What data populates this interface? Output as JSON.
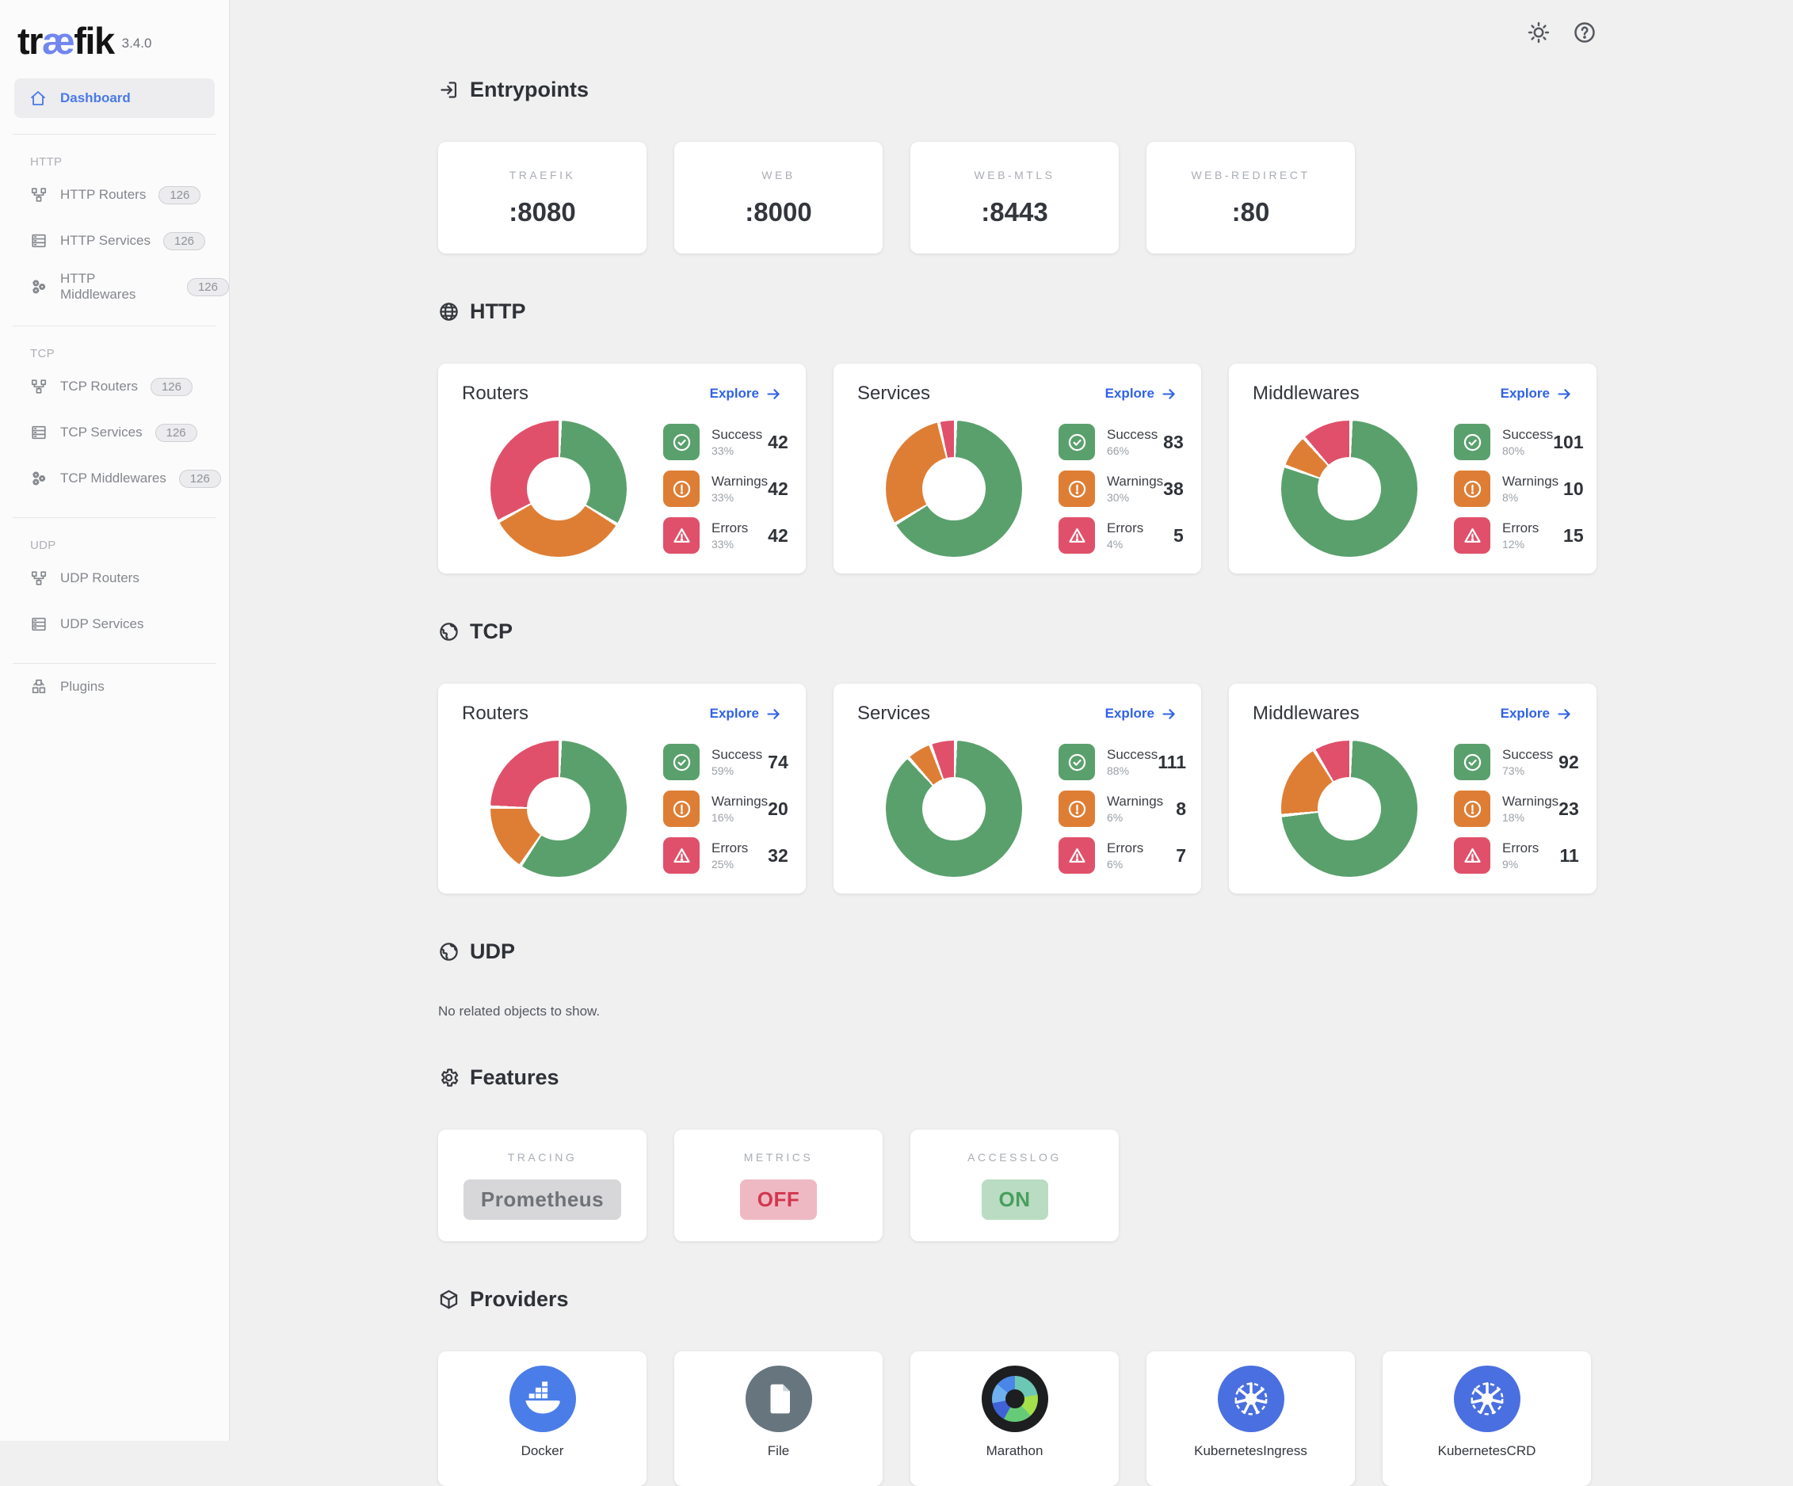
{
  "colors": {
    "accent": "#2f62e6",
    "logo_accent": "#7286f0",
    "success": "#5aa06d",
    "warning": "#de7e35",
    "error": "#e0506a",
    "feature_on_bg": "#badcc2",
    "feature_on_text": "#4a9e5e",
    "feature_off_bg": "#efb9c3",
    "feature_off_text": "#d2374e",
    "feature_neutral_bg": "#d7d7d9",
    "feature_neutral_text": "#6f7277",
    "docker_blue": "#4a7de8",
    "kubernetes_blue": "#4a6fe0",
    "file_gray": "#67757e"
  },
  "app": {
    "logo_pre": "tr",
    "logo_mid": "æ",
    "logo_post": "fik",
    "version": "3.4.0"
  },
  "topbar": {
    "theme_icon": "sun-icon",
    "help_icon": "help-icon"
  },
  "sidebar": {
    "dashboard_label": "Dashboard",
    "sections": [
      {
        "title": "HTTP",
        "items": [
          {
            "label": "HTTP Routers",
            "badge": "126",
            "icon": "routers-icon"
          },
          {
            "label": "HTTP Services",
            "badge": "126",
            "icon": "services-icon"
          },
          {
            "label": "HTTP Middlewares",
            "badge": "126",
            "icon": "middlewares-icon"
          }
        ]
      },
      {
        "title": "TCP",
        "items": [
          {
            "label": "TCP Routers",
            "badge": "126",
            "icon": "routers-icon"
          },
          {
            "label": "TCP Services",
            "badge": "126",
            "icon": "services-icon"
          },
          {
            "label": "TCP Middlewares",
            "badge": "126",
            "icon": "middlewares-icon"
          }
        ]
      },
      {
        "title": "UDP",
        "items": [
          {
            "label": "UDP Routers",
            "badge": null,
            "icon": "routers-icon"
          },
          {
            "label": "UDP Services",
            "badge": null,
            "icon": "services-icon"
          }
        ]
      }
    ],
    "plugins_label": "Plugins"
  },
  "entrypoints": {
    "title": "Entrypoints",
    "icon": "login-icon",
    "cards": [
      {
        "name": "TRAEFIK",
        "port": ":8080"
      },
      {
        "name": "WEB",
        "port": ":8000"
      },
      {
        "name": "WEB-MTLS",
        "port": ":8443"
      },
      {
        "name": "WEB-REDIRECT",
        "port": ":80"
      }
    ]
  },
  "protocol_sections": [
    {
      "title": "HTTP",
      "icon": "globe-icon",
      "cards": [
        {
          "title": "Routers",
          "explore": "Explore",
          "stats": [
            {
              "type": "success",
              "label": "Success",
              "pct": "33%",
              "p": 33,
              "value": "42"
            },
            {
              "type": "warning",
              "label": "Warnings",
              "pct": "33%",
              "p": 33,
              "value": "42"
            },
            {
              "type": "error",
              "label": "Errors",
              "pct": "33%",
              "p": 33,
              "value": "42"
            }
          ]
        },
        {
          "title": "Services",
          "explore": "Explore",
          "stats": [
            {
              "type": "success",
              "label": "Success",
              "pct": "66%",
              "p": 66,
              "value": "83"
            },
            {
              "type": "warning",
              "label": "Warnings",
              "pct": "30%",
              "p": 30,
              "value": "38"
            },
            {
              "type": "error",
              "label": "Errors",
              "pct": "4%",
              "p": 4,
              "value": "5"
            }
          ]
        },
        {
          "title": "Middlewares",
          "explore": "Explore",
          "stats": [
            {
              "type": "success",
              "label": "Success",
              "pct": "80%",
              "p": 80,
              "value": "101"
            },
            {
              "type": "warning",
              "label": "Warnings",
              "pct": "8%",
              "p": 8,
              "value": "10"
            },
            {
              "type": "error",
              "label": "Errors",
              "pct": "12%",
              "p": 12,
              "value": "15"
            }
          ]
        }
      ]
    },
    {
      "title": "TCP",
      "icon": "earth-icon",
      "cards": [
        {
          "title": "Routers",
          "explore": "Explore",
          "stats": [
            {
              "type": "success",
              "label": "Success",
              "pct": "59%",
              "p": 59,
              "value": "74"
            },
            {
              "type": "warning",
              "label": "Warnings",
              "pct": "16%",
              "p": 16,
              "value": "20"
            },
            {
              "type": "error",
              "label": "Errors",
              "pct": "25%",
              "p": 25,
              "value": "32"
            }
          ]
        },
        {
          "title": "Services",
          "explore": "Explore",
          "stats": [
            {
              "type": "success",
              "label": "Success",
              "pct": "88%",
              "p": 88,
              "value": "111"
            },
            {
              "type": "warning",
              "label": "Warnings",
              "pct": "6%",
              "p": 6,
              "value": "8"
            },
            {
              "type": "error",
              "label": "Errors",
              "pct": "6%",
              "p": 6,
              "value": "7"
            }
          ]
        },
        {
          "title": "Middlewares",
          "explore": "Explore",
          "stats": [
            {
              "type": "success",
              "label": "Success",
              "pct": "73%",
              "p": 73,
              "value": "92"
            },
            {
              "type": "warning",
              "label": "Warnings",
              "pct": "18%",
              "p": 18,
              "value": "23"
            },
            {
              "type": "error",
              "label": "Errors",
              "pct": "9%",
              "p": 9,
              "value": "11"
            }
          ]
        }
      ]
    }
  ],
  "udp_section": {
    "title": "UDP",
    "icon": "earth-icon",
    "empty_text": "No related objects to show."
  },
  "features": {
    "title": "Features",
    "icon": "gear-icon",
    "cards": [
      {
        "label": "TRACING",
        "value": "Prometheus",
        "state": "neutral"
      },
      {
        "label": "METRICS",
        "value": "OFF",
        "state": "off"
      },
      {
        "label": "ACCESSLOG",
        "value": "ON",
        "state": "on"
      }
    ]
  },
  "providers": {
    "title": "Providers",
    "icon": "package-icon",
    "cards": [
      {
        "label": "Docker",
        "icon": "docker-icon"
      },
      {
        "label": "File",
        "icon": "file-icon"
      },
      {
        "label": "Marathon",
        "icon": "marathon-icon"
      },
      {
        "label": "KubernetesIngress",
        "icon": "kubernetes-icon"
      },
      {
        "label": "KubernetesCRD",
        "icon": "kubernetes-icon"
      }
    ]
  },
  "chart_data": [
    {
      "type": "pie",
      "title": "HTTP Routers",
      "labels": [
        "Success",
        "Warnings",
        "Errors"
      ],
      "values": [
        42,
        42,
        42
      ],
      "percents": [
        33,
        33,
        33
      ]
    },
    {
      "type": "pie",
      "title": "HTTP Services",
      "labels": [
        "Success",
        "Warnings",
        "Errors"
      ],
      "values": [
        83,
        38,
        5
      ],
      "percents": [
        66,
        30,
        4
      ]
    },
    {
      "type": "pie",
      "title": "HTTP Middlewares",
      "labels": [
        "Success",
        "Warnings",
        "Errors"
      ],
      "values": [
        101,
        10,
        15
      ],
      "percents": [
        80,
        8,
        12
      ]
    },
    {
      "type": "pie",
      "title": "TCP Routers",
      "labels": [
        "Success",
        "Warnings",
        "Errors"
      ],
      "values": [
        74,
        20,
        32
      ],
      "percents": [
        59,
        16,
        25
      ]
    },
    {
      "type": "pie",
      "title": "TCP Services",
      "labels": [
        "Success",
        "Warnings",
        "Errors"
      ],
      "values": [
        111,
        8,
        7
      ],
      "percents": [
        88,
        6,
        6
      ]
    },
    {
      "type": "pie",
      "title": "TCP Middlewares",
      "labels": [
        "Success",
        "Warnings",
        "Errors"
      ],
      "values": [
        92,
        23,
        11
      ],
      "percents": [
        73,
        18,
        9
      ]
    }
  ]
}
